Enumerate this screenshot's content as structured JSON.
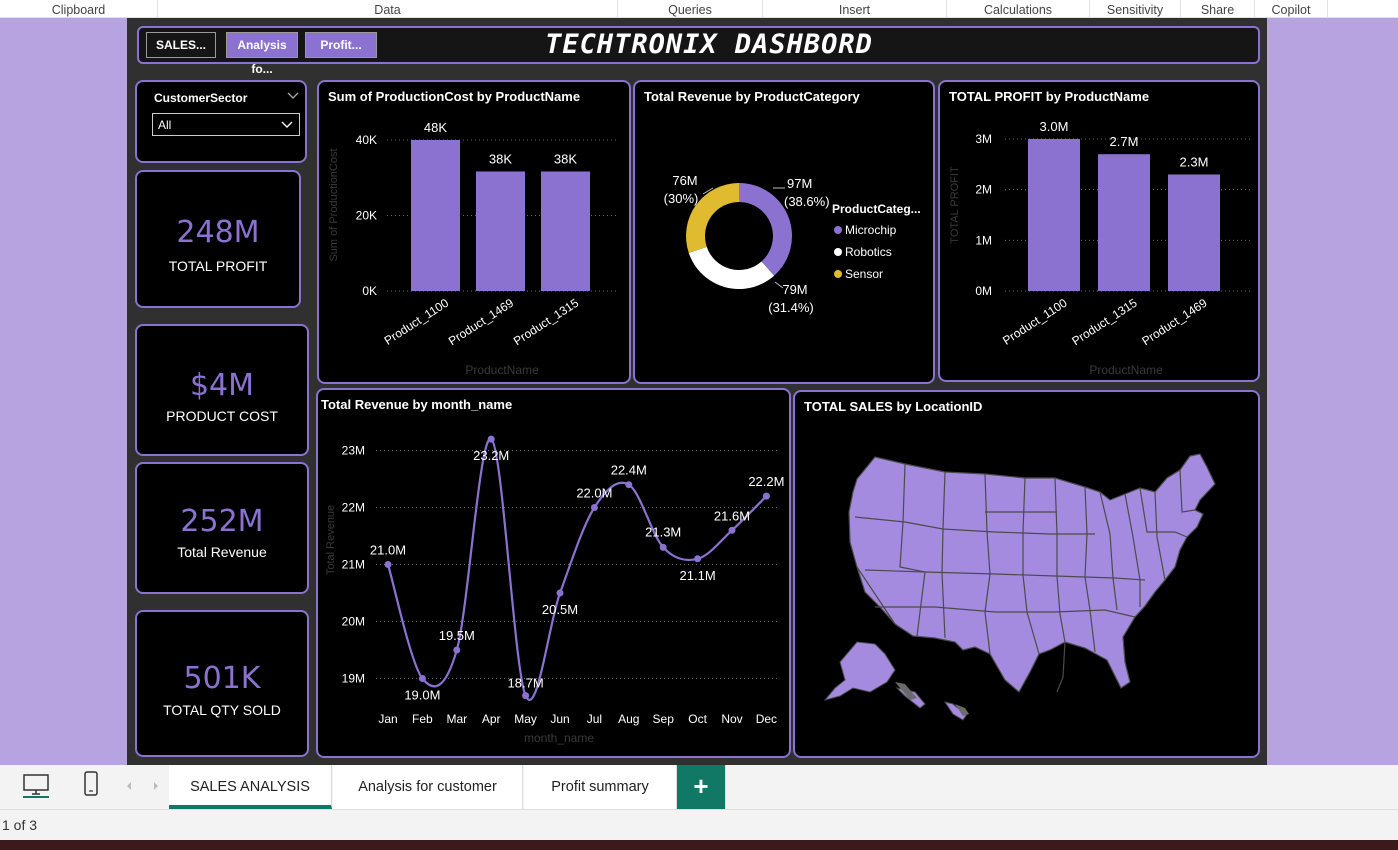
{
  "ribbon": [
    "Clipboard",
    "Data",
    "Queries",
    "Insert",
    "Calculations",
    "Sensitivity",
    "Share",
    "Copilot"
  ],
  "header": {
    "nav": [
      "SALES...",
      "Analysis fo...",
      "Profit..."
    ],
    "title": "TECHTRONIX DASHBORD"
  },
  "slicer": {
    "label": "CustomerSector",
    "value": "All"
  },
  "kpis": [
    {
      "value": "248M",
      "caption": "TOTAL PROFIT"
    },
    {
      "value": "$4M",
      "caption": "PRODUCT COST"
    },
    {
      "value": "252M",
      "caption": "Total Revenue"
    },
    {
      "value": "501K",
      "caption": "TOTAL QTY SOLD"
    }
  ],
  "map_title": "TOTAL SALES by LocationID",
  "chart_data": [
    {
      "type": "bar",
      "title": "Sum of ProductionCost by ProductName",
      "xlabel": "ProductName",
      "ylabel": "Sum of ProductionCost",
      "categories": [
        "Product_1100",
        "Product_1469",
        "Product_1315"
      ],
      "values": [
        48000,
        38000,
        38000
      ],
      "data_labels": [
        "48K",
        "38K",
        "38K"
      ],
      "yticks": [
        "0K",
        "20K",
        "40K"
      ],
      "ylim": [
        0,
        48000
      ]
    },
    {
      "type": "pie",
      "title": "Total Revenue by ProductCategory",
      "legend_title": "ProductCateg...",
      "labels": [
        "Microchip",
        "Robotics",
        "Sensor"
      ],
      "values": [
        97,
        79,
        76
      ],
      "data_labels": [
        "97M",
        "79M",
        "76M"
      ],
      "percent_labels": [
        "(38.6%)",
        "(31.4%)",
        "(30%)"
      ],
      "colors": [
        "#8b72d0",
        "#ffffff",
        "#e0bb2f"
      ]
    },
    {
      "type": "bar",
      "title": "TOTAL PROFIT by ProductName",
      "xlabel": "ProductName",
      "ylabel": "TOTAL PROFIT",
      "categories": [
        "Product_1100",
        "Product_1315",
        "Product_1469"
      ],
      "values": [
        3.0,
        2.7,
        2.3
      ],
      "data_labels": [
        "3.0M",
        "2.7M",
        "2.3M"
      ],
      "yticks": [
        "0M",
        "1M",
        "2M",
        "3M"
      ],
      "ylim": [
        0,
        3
      ]
    },
    {
      "type": "line",
      "title": "Total Revenue by month_name",
      "xlabel": "month_name",
      "ylabel": "Total Revenue",
      "categories": [
        "Jan",
        "Feb",
        "Mar",
        "Apr",
        "May",
        "Jun",
        "Jul",
        "Aug",
        "Sep",
        "Oct",
        "Nov",
        "Dec"
      ],
      "values": [
        21.0,
        19.0,
        19.5,
        23.2,
        18.7,
        20.5,
        22.0,
        22.4,
        21.3,
        21.1,
        21.6,
        22.2
      ],
      "data_labels": [
        "21.0M",
        "19.0M",
        "19.5M",
        "23.2M",
        "18.7M",
        "20.5M",
        "22.0M",
        "22.4M",
        "21.3M",
        "21.1M",
        "21.6M",
        "22.2M"
      ],
      "yticks": [
        "19M",
        "20M",
        "21M",
        "22M",
        "23M"
      ],
      "ylim": [
        18.5,
        23.5
      ]
    }
  ],
  "page_tabs": [
    "SALES ANALYSIS",
    "Analysis for customer",
    "Profit summary"
  ],
  "add_tab": "+",
  "status": {
    "page_indicator": "1 of 3"
  },
  "colors": {
    "accent": "#8b72d0",
    "canvas_bg": "#b7a3e0",
    "report_bg": "#303030",
    "sensor": "#e0bb2f",
    "tab_active": "#117865"
  }
}
